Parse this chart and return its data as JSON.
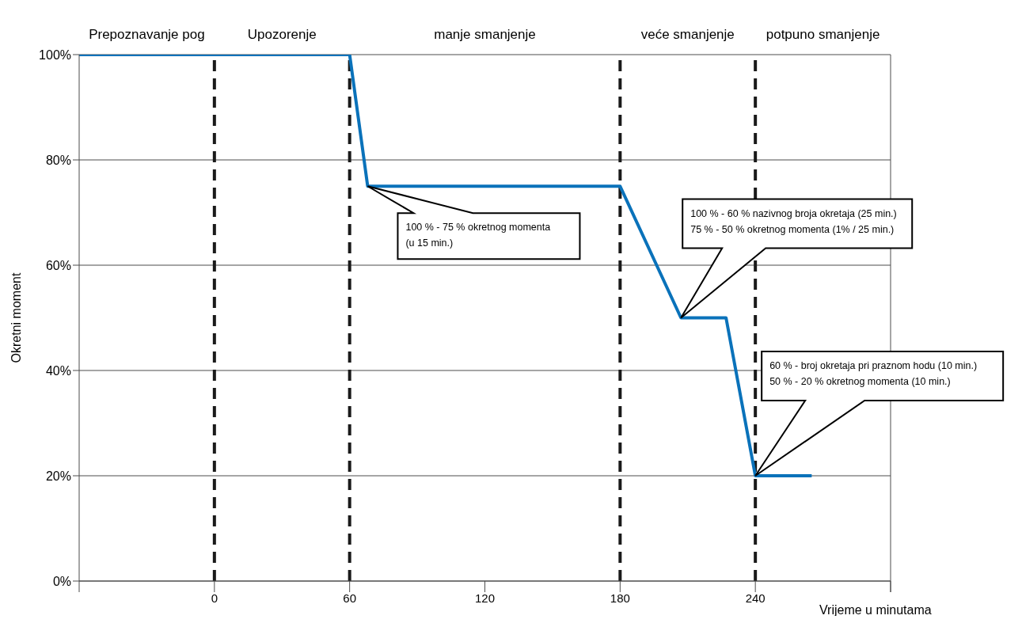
{
  "chart_data": {
    "type": "line",
    "xlabel": "Vrijeme u minutama",
    "ylabel": "Okretni moment",
    "x": [
      -60,
      60,
      68,
      180,
      207,
      227,
      240,
      265
    ],
    "series": [
      {
        "color": "#0a72ba",
        "values": [
          100,
          100,
          75,
          75,
          50,
          50,
          20,
          20
        ]
      }
    ],
    "xlim": [
      -60,
      300
    ],
    "xticks": [
      {
        "value": -60,
        "label": null
      },
      0,
      60,
      120,
      180,
      240,
      {
        "value": 300,
        "label": null
      }
    ],
    "ylim": [
      0,
      100
    ],
    "yticks": [
      {
        "value": 0,
        "label": "0%"
      },
      {
        "value": 20,
        "label": "20%"
      },
      {
        "value": 40,
        "label": "40%"
      },
      {
        "value": 60,
        "label": "60%"
      },
      {
        "value": 80,
        "label": "80%"
      },
      {
        "value": 100,
        "label": "100%"
      }
    ],
    "grid": "y",
    "marker": "none",
    "line_style": "solid",
    "ref_lines": [
      {
        "axis": "x",
        "value": 0,
        "color": "#1a1a1a",
        "line_style": "dashed"
      },
      {
        "axis": "x",
        "value": 60,
        "color": "#1a1a1a",
        "line_style": "dashed"
      },
      {
        "axis": "x",
        "value": 180,
        "color": "#1a1a1a",
        "line_style": "dashed"
      },
      {
        "axis": "x",
        "value": 240,
        "color": "#1a1a1a",
        "line_style": "dashed"
      }
    ],
    "annotations": [
      "Prepoznavanje pog",
      "Upozorenje",
      "manje smanjenje",
      "veće smanjenje",
      "potpuno smanjenje",
      "100 % - 75 % okretnog momenta\n(u 15 min.)",
      "100 % - 60 % nazivnog broja okretaja (25 min.)\n75 % - 50 % okretnog momenta (1% / 25 min.)",
      "60 % - broj okretaja pri praznom hodu (10 min.)\n50 % - 20 % okretnog momenta (10 min.)"
    ]
  }
}
